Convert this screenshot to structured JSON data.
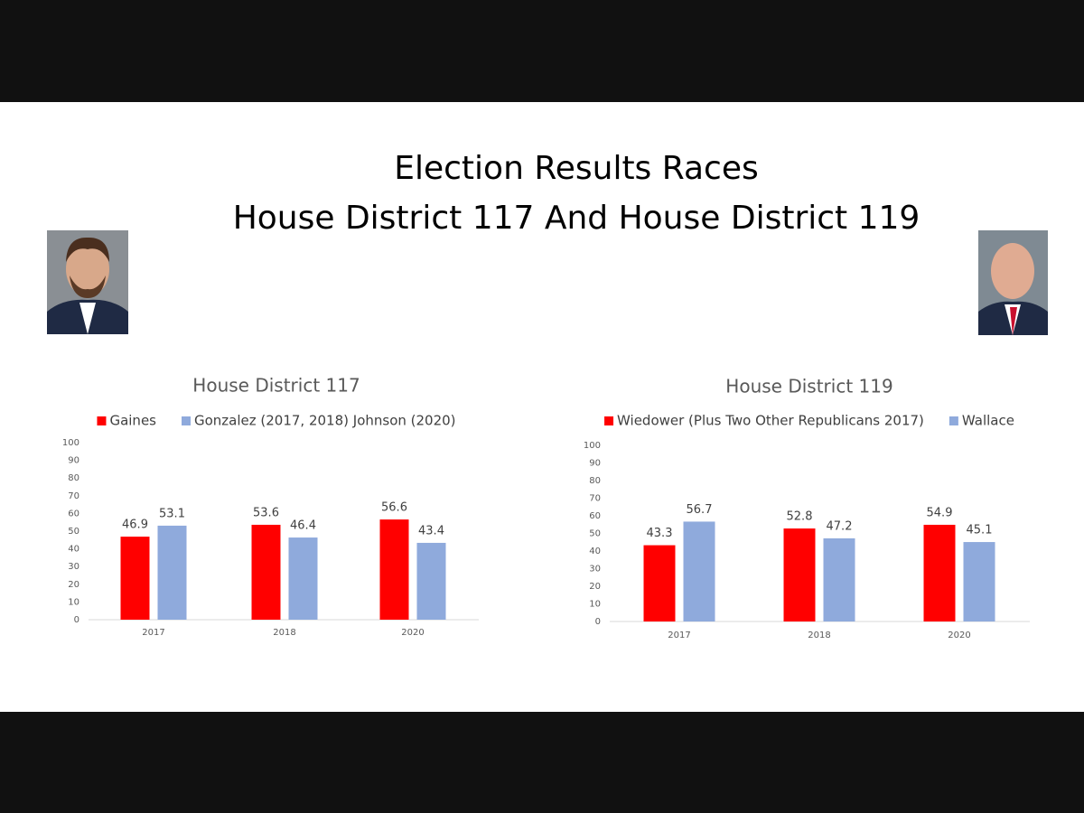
{
  "slide": {
    "title_lines": [
      "Election Results Races",
      "House District 117 And House District 119"
    ]
  },
  "chart_data": [
    {
      "type": "bar",
      "title": "House District 117",
      "categories": [
        "2017",
        "2018",
        "2020"
      ],
      "series": [
        {
          "name": "Gaines",
          "color": "#ff0000",
          "values": [
            46.9,
            53.6,
            56.6
          ]
        },
        {
          "name": "Gonzalez (2017, 2018) Johnson (2020)",
          "color": "#8faadc",
          "values": [
            53.1,
            46.4,
            43.4
          ]
        }
      ],
      "ylim": [
        0,
        100
      ],
      "yticks": [
        0,
        10,
        20,
        30,
        40,
        50,
        60,
        70,
        80,
        90,
        100
      ],
      "grid": false,
      "legend": "top"
    },
    {
      "type": "bar",
      "title": "House District 119",
      "categories": [
        "2017",
        "2018",
        "2020"
      ],
      "series": [
        {
          "name": "Wiedower (Plus Two Other Republicans 2017)",
          "color": "#ff0000",
          "values": [
            43.3,
            52.8,
            54.9
          ]
        },
        {
          "name": "Wallace",
          "color": "#8faadc",
          "values": [
            56.7,
            47.2,
            45.1
          ]
        }
      ],
      "ylim": [
        0,
        100
      ],
      "yticks": [
        0,
        10,
        20,
        30,
        40,
        50,
        60,
        70,
        80,
        90,
        100
      ],
      "grid": false,
      "legend": "top"
    }
  ]
}
